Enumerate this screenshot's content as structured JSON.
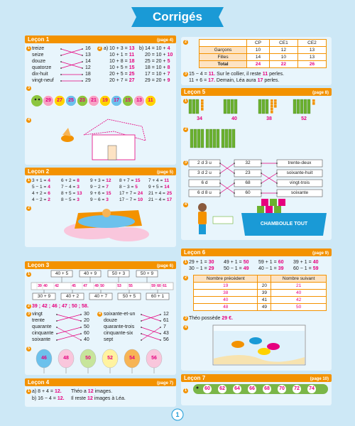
{
  "title": "Corrigés",
  "page_number": "1",
  "lesson1": {
    "label": "Leçon 1",
    "page": "(page 4)",
    "ex1": {
      "num": "1",
      "words": [
        "treize",
        "seize",
        "douze",
        "quatorze",
        "dix-huit",
        "vingt-neuf"
      ],
      "numbers": [
        "16",
        "13",
        "14",
        "12",
        "18",
        "29"
      ]
    },
    "ex2": {
      "num": "2",
      "a_label": "a)",
      "a": [
        [
          "10 + 3 =",
          "13"
        ],
        [
          "10 + 1 =",
          "11"
        ],
        [
          "10 + 8 =",
          "18"
        ],
        [
          "10 + 5 =",
          "15"
        ],
        [
          "20 + 5 =",
          "25"
        ],
        [
          "20 + 7 =",
          "27"
        ]
      ],
      "b_label": "b)",
      "b": [
        [
          "14 = 10 +",
          "4"
        ],
        [
          "20 = 10 +",
          "10"
        ],
        [
          "25 = 20 +",
          "5"
        ],
        [
          "18 = 10 +",
          "8"
        ],
        [
          "17 = 10 +",
          "7"
        ],
        [
          "29 = 20 +",
          "9"
        ]
      ]
    },
    "ex3": {
      "num": "3",
      "numbers": [
        "29",
        "27",
        "25",
        "23",
        "21",
        "19",
        "17",
        "15",
        "13",
        "11"
      ]
    },
    "ex4": {
      "num": "4"
    }
  },
  "lesson2": {
    "label": "Leçon 2",
    "page": "(page 5)",
    "ex1": {
      "num": "1",
      "equations": [
        [
          "3 + 1 =",
          "4"
        ],
        [
          "5 − 1 =",
          "4"
        ],
        [
          "4 + 2 =",
          "6"
        ],
        [
          "4 − 2 =",
          "2"
        ],
        [
          "6 + 2 =",
          "8"
        ],
        [
          "7 − 4 =",
          "3"
        ],
        [
          "8 + 5 =",
          "13"
        ],
        [
          "8 − 5 =",
          "3"
        ],
        [
          "9 + 3 =",
          "12"
        ],
        [
          "9 − 2 =",
          "7"
        ],
        [
          "9 + 6 =",
          "15"
        ],
        [
          "9 − 6 =",
          "3"
        ],
        [
          "8 + 7 =",
          "15"
        ],
        [
          "8 − 3 =",
          "5"
        ],
        [
          "17 + 7 =",
          "24"
        ],
        [
          "17 − 7 =",
          "10"
        ],
        [
          "7 + 4 =",
          "11"
        ],
        [
          "9 + 5 =",
          "14"
        ],
        [
          "21 + 4 =",
          "25"
        ],
        [
          "21 − 4 =",
          "17"
        ]
      ]
    },
    "ex2": {
      "num": "2"
    }
  },
  "lesson3": {
    "label": "Leçon 3",
    "page": "(page 6)",
    "ex1": {
      "num": "1",
      "top": [
        "40 + 5",
        "40 + 9",
        "50 + 3",
        "50 + 9"
      ],
      "line": [
        "39",
        "40",
        "42",
        "45",
        "47",
        "49",
        "50",
        "53",
        "55",
        "59",
        "60",
        "61"
      ],
      "bottom": [
        "30 + 9",
        "40 + 2",
        "40 + 7",
        "50 + 5",
        "60 + 1"
      ]
    },
    "ex2": {
      "num": "2",
      "answer": "39 ; 42 ; 46 ; 47 ; 50 ; 58."
    },
    "ex3": {
      "num": "3",
      "words": [
        "vingt",
        "trente",
        "quarante",
        "cinquante",
        "soixante"
      ],
      "numbers": [
        "30",
        "20",
        "50",
        "60",
        "40"
      ]
    },
    "ex4": {
      "num": "4",
      "words": [
        "soixante-et-un",
        "douze",
        "quarante-trois",
        "cinquante-six",
        "sept"
      ],
      "numbers": [
        "12",
        "61",
        "7",
        "43",
        "56"
      ]
    },
    "ex5": {
      "num": "5",
      "numbers": [
        "46",
        "48",
        "50",
        "52",
        "54",
        "56"
      ]
    }
  },
  "lesson4": {
    "label": "Leçon 4",
    "page": "(page 7)",
    "ex1": {
      "num": "1",
      "a": {
        "equation": [
          "a) 8 + 4 =",
          "12."
        ],
        "sentence": [
          "Théo a",
          "12",
          "images."
        ]
      },
      "b": {
        "equation": [
          "b) 16 − 4 =",
          "12."
        ],
        "sentence": [
          "Il reste",
          "12",
          "images à Léa."
        ]
      }
    }
  },
  "table_section": {
    "num": "2",
    "headers": [
      "CP",
      "CE1",
      "CE2"
    ],
    "rows": [
      {
        "label": "Garçons",
        "values": [
          "10",
          "12",
          "13"
        ]
      },
      {
        "label": "Filles",
        "values": [
          "14",
          "10",
          "13"
        ]
      },
      {
        "label": "Total",
        "values": [
          "24",
          "22",
          "26"
        ]
      }
    ]
  },
  "collier": {
    "num": "3",
    "lines": [
      [
        "15 − 4 =",
        "11.",
        "Sur le collier, il reste",
        "11",
        "perles."
      ],
      [
        "11 + 6 =",
        "17.",
        "Demain, Léa aura",
        "17",
        "perles."
      ]
    ]
  },
  "lesson5": {
    "label": "Leçon 5",
    "page": "(page 8)",
    "ex1": {
      "num": "1",
      "numbers": [
        "34",
        "40",
        "38",
        "52"
      ]
    },
    "ex2": {
      "num": "2"
    },
    "ex3": {
      "num": "3",
      "left": [
        "2 d 3 u",
        "3 d 2 u",
        "6 d",
        "6 d 8 u"
      ],
      "middle": [
        "32",
        "23",
        "68",
        "60"
      ],
      "right": [
        "trente-deux",
        "soixante-huit",
        "vingt-trois",
        "soixante"
      ]
    },
    "ex4": {
      "num": "4",
      "sign": "CHAMBOULE TOUT"
    }
  },
  "lesson6": {
    "label": "Leçon 6",
    "page": "(page 9)",
    "ex1": {
      "num": "1",
      "equations": [
        [
          "29 + 1 =",
          "30"
        ],
        [
          "30 − 1 =",
          "29"
        ],
        [
          "49 + 1 =",
          "50"
        ],
        [
          "50 − 1 =",
          "49"
        ],
        [
          "59 + 1 =",
          "60"
        ],
        [
          "40 − 1 =",
          "39"
        ],
        [
          "39 + 1 =",
          "40"
        ],
        [
          "60 − 1 =",
          "59"
        ]
      ]
    },
    "ex2": {
      "num": "2",
      "headers": [
        "Nombre précédent",
        "Nombre suivant"
      ],
      "rows": [
        [
          "19",
          "20",
          "21"
        ],
        [
          "38",
          "39",
          "40"
        ],
        [
          "40",
          "41",
          "42"
        ],
        [
          "48",
          "49",
          "50"
        ]
      ]
    },
    "ex3": {
      "num": "3",
      "sentence": [
        "Théo possède",
        "29 €."
      ]
    },
    "ex4": {
      "num": "4"
    }
  },
  "lesson7": {
    "label": "Leçon 7",
    "page": "(page 10)",
    "ex1": {
      "num": "1",
      "numbers": [
        "60",
        "62",
        "64",
        "66",
        "68",
        "70",
        "72",
        "74"
      ]
    }
  }
}
